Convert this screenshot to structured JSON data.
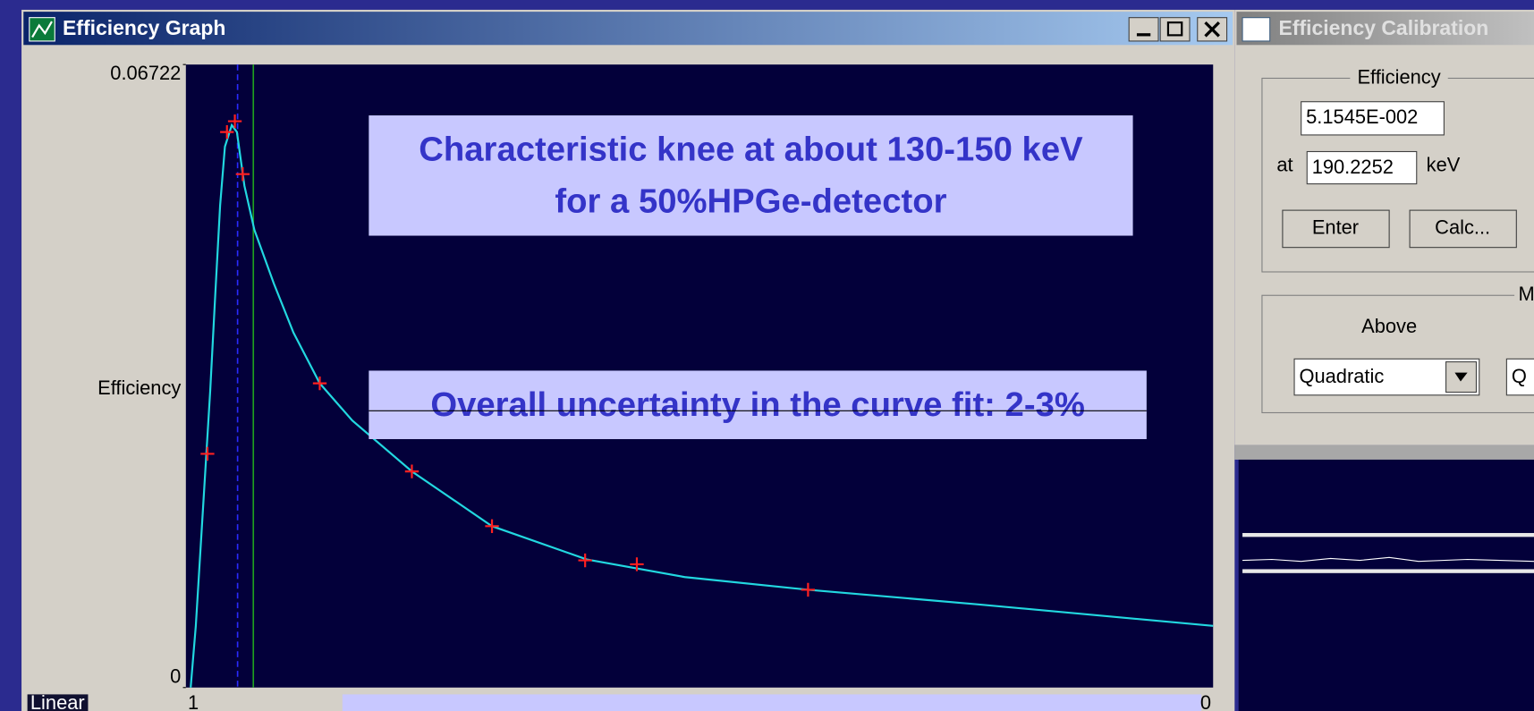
{
  "graph_window": {
    "title": "Efficiency Graph",
    "scale_button": "Linear"
  },
  "chart_data": {
    "type": "line",
    "y_label": "Efficiency",
    "ylim": [
      0,
      0.06722
    ],
    "yticks": [
      0,
      0.06722
    ],
    "xlim": [
      0,
      3000
    ],
    "x_edge_labels": [
      "1",
      "0"
    ],
    "curve": {
      "color": "#22d8e0",
      "x": [
        14,
        29,
        43,
        57,
        71,
        86,
        100,
        114,
        134,
        149,
        171,
        200,
        257,
        314,
        391,
        486,
        660,
        894,
        1171,
        1457,
        1817,
        2314,
        3000
      ],
      "values": [
        0,
        0.00665,
        0.01509,
        0.02353,
        0.03197,
        0.04253,
        0.05202,
        0.05836,
        0.06068,
        0.05994,
        0.05413,
        0.04939,
        0.04358,
        0.03831,
        0.03282,
        0.02881,
        0.02332,
        0.01741,
        0.01382,
        0.01192,
        0.01055,
        0.00897,
        0.00665
      ]
    },
    "points": {
      "color": "#ff2020",
      "x": [
        63,
        120,
        143,
        166,
        391,
        660,
        894,
        1166,
        1317,
        1817
      ],
      "values": [
        0.02522,
        0.05994,
        0.0611,
        0.0554,
        0.03282,
        0.02332,
        0.01741,
        0.01372,
        0.0133,
        0.01055
      ]
    },
    "markers": [
      {
        "x": 151,
        "color": "#2a2aff",
        "style": "dashed"
      },
      {
        "x": 197,
        "color": "#1fa01f",
        "style": "solid"
      }
    ],
    "annotations": [
      {
        "lines": [
          "Characteristic knee at about 130-150 keV",
          "for a 50%HPGe-detector"
        ]
      },
      {
        "lines": [
          "Overall uncertainty in the curve fit: 2-3%"
        ]
      }
    ]
  },
  "calibration_window": {
    "title": "Efficiency Calibration",
    "efficiency_group": "Efficiency",
    "efficiency_value": "5.1545E-002",
    "at_label": "at",
    "energy_value": "190.2252",
    "energy_unit": "keV",
    "enter_button": "Enter",
    "calc_button": "Calc...",
    "model_group": "M",
    "above_label": "Above",
    "above_model": "Quadratic",
    "second_model": "Q"
  }
}
